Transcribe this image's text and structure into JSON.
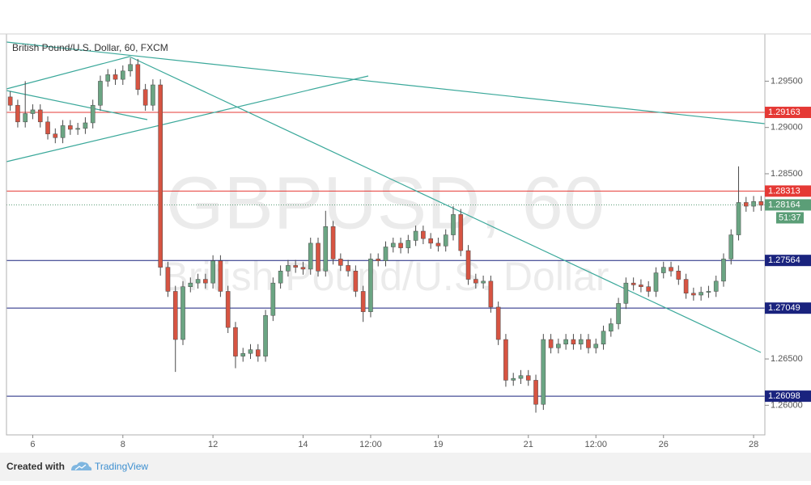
{
  "chart_data": {
    "type": "candlestick",
    "title": "British Pound/U.S. Dollar, 60, FXCM",
    "watermark": "GBPUSD, 60",
    "watermark_subtitle": "British Pound/U.S. Dollar",
    "categories": [
      null,
      null,
      null,
      "6",
      null,
      null,
      null,
      null,
      null,
      null,
      null,
      null,
      null,
      null,
      null,
      "8",
      null,
      null,
      null,
      null,
      null,
      null,
      null,
      null,
      null,
      null,
      null,
      "12",
      null,
      null,
      null,
      null,
      null,
      null,
      null,
      null,
      null,
      null,
      null,
      "14",
      null,
      null,
      null,
      null,
      null,
      null,
      null,
      null,
      "12:00",
      null,
      null,
      null,
      null,
      null,
      null,
      null,
      null,
      "19",
      null,
      null,
      null,
      null,
      null,
      null,
      null,
      null,
      null,
      null,
      null,
      "21",
      null,
      null,
      null,
      null,
      null,
      null,
      null,
      null,
      "12:00",
      null,
      null,
      null,
      null,
      null,
      null,
      null,
      null,
      "26",
      null,
      null,
      null,
      null,
      null,
      null,
      null,
      null,
      null,
      null,
      null,
      "28",
      null
    ],
    "open": [
      1.2933,
      1.2924,
      1.2906,
      1.2915,
      1.2919,
      1.2906,
      1.2893,
      1.2889,
      1.2902,
      1.2898,
      1.2899,
      1.2905,
      1.2924,
      1.295,
      1.2957,
      1.2952,
      1.2961,
      1.2968,
      1.2941,
      1.2924,
      1.2946,
      1.2749,
      1.2723,
      1.2671,
      1.2728,
      1.2732,
      1.2736,
      1.2732,
      1.2756,
      1.2723,
      1.2684,
      1.2653,
      1.2656,
      1.266,
      1.2653,
      1.2697,
      1.2732,
      1.2745,
      1.2751,
      1.2749,
      1.2747,
      1.2775,
      1.2745,
      1.2793,
      1.2758,
      1.2751,
      1.2745,
      1.2723,
      1.2701,
      1.2758,
      1.2756,
      1.2771,
      1.2775,
      1.277,
      1.2778,
      1.2788,
      1.278,
      1.2775,
      1.2772,
      1.2784,
      1.2806,
      1.2767,
      1.2736,
      1.2732,
      1.2734,
      1.2706,
      1.2671,
      1.2627,
      1.2629,
      1.2632,
      1.2627,
      1.2601,
      1.2671,
      1.2662,
      1.2666,
      1.2671,
      1.2666,
      1.2671,
      1.2662,
      1.2666,
      1.268,
      1.2688,
      1.271,
      1.2732,
      1.273,
      1.2728,
      1.2723,
      1.2743,
      1.2749,
      1.2745,
      1.2736,
      1.2721,
      1.2719,
      1.2722,
      1.2723,
      1.2734,
      1.2758,
      1.2784,
      1.2819,
      1.2815,
      1.282
    ],
    "high": [
      1.2939,
      1.293,
      1.295,
      1.2925,
      1.2925,
      1.2912,
      1.2899,
      1.2908,
      1.2908,
      1.2905,
      1.2911,
      1.293,
      1.2956,
      1.2963,
      1.2963,
      1.2967,
      1.2975,
      1.2974,
      1.2947,
      1.2952,
      1.2952,
      1.2755,
      1.2729,
      1.2734,
      1.2738,
      1.2742,
      1.2742,
      1.2762,
      1.2762,
      1.2729,
      1.269,
      1.2662,
      1.2666,
      1.2666,
      1.2703,
      1.2738,
      1.2751,
      1.2757,
      1.2757,
      1.2755,
      1.2781,
      1.2781,
      1.281,
      1.2799,
      1.2764,
      1.2757,
      1.2751,
      1.2729,
      1.2764,
      1.2764,
      1.2777,
      1.2781,
      1.2781,
      1.2784,
      1.2794,
      1.2794,
      1.2786,
      1.2781,
      1.279,
      1.2815,
      1.2812,
      1.2773,
      1.2742,
      1.274,
      1.274,
      1.2712,
      1.2677,
      1.2635,
      1.2638,
      1.2638,
      1.2633,
      1.2677,
      1.2677,
      1.2672,
      1.2677,
      1.2677,
      1.2677,
      1.2677,
      1.2672,
      1.2686,
      1.2694,
      1.2716,
      1.2738,
      1.2738,
      1.2736,
      1.2734,
      1.2749,
      1.2755,
      1.2755,
      1.2751,
      1.2742,
      1.2727,
      1.2728,
      1.2729,
      1.274,
      1.2764,
      1.279,
      1.2858,
      1.2825,
      1.2826,
      1.2826
    ],
    "low": [
      1.2918,
      1.29,
      1.29,
      1.2909,
      1.29,
      1.2887,
      1.2883,
      1.2883,
      1.2892,
      1.2892,
      1.2893,
      1.2899,
      1.2918,
      1.2944,
      1.2946,
      1.2946,
      1.2955,
      1.2935,
      1.2918,
      1.2918,
      1.274,
      1.2717,
      1.2636,
      1.2665,
      1.2722,
      1.2726,
      1.2726,
      1.2726,
      1.2717,
      1.2678,
      1.264,
      1.2647,
      1.265,
      1.2647,
      1.2647,
      1.2691,
      1.2726,
      1.2739,
      1.2743,
      1.2741,
      1.2741,
      1.2739,
      1.2739,
      1.2752,
      1.2745,
      1.2739,
      1.2717,
      1.269,
      1.2695,
      1.275,
      1.275,
      1.2765,
      1.2764,
      1.2764,
      1.2772,
      1.2774,
      1.2769,
      1.2766,
      1.2766,
      1.2778,
      1.2761,
      1.273,
      1.2726,
      1.2726,
      1.27,
      1.2665,
      1.262,
      1.2621,
      1.2623,
      1.2621,
      1.2592,
      1.2595,
      1.2656,
      1.2656,
      1.266,
      1.266,
      1.266,
      1.2656,
      1.2656,
      1.266,
      1.2674,
      1.2682,
      1.2704,
      1.2724,
      1.2722,
      1.2717,
      1.2717,
      1.2737,
      1.2739,
      1.273,
      1.2715,
      1.2713,
      1.2713,
      1.2716,
      1.2717,
      1.2728,
      1.2752,
      1.2778,
      1.2809,
      1.2809,
      1.281
    ],
    "close": [
      1.2924,
      1.2906,
      1.2915,
      1.2919,
      1.2906,
      1.2893,
      1.2889,
      1.2902,
      1.2898,
      1.2899,
      1.2905,
      1.2924,
      1.295,
      1.2957,
      1.2952,
      1.2961,
      1.2968,
      1.2941,
      1.2924,
      1.2946,
      1.2749,
      1.2723,
      1.2671,
      1.2728,
      1.2732,
      1.2736,
      1.2732,
      1.2756,
      1.2723,
      1.2684,
      1.2653,
      1.2656,
      1.266,
      1.2653,
      1.2697,
      1.2732,
      1.2745,
      1.2751,
      1.2749,
      1.2747,
      1.2775,
      1.2745,
      1.2793,
      1.2758,
      1.2751,
      1.2745,
      1.2723,
      1.2701,
      1.2758,
      1.2756,
      1.2771,
      1.2775,
      1.277,
      1.2778,
      1.2788,
      1.278,
      1.2775,
      1.2772,
      1.2784,
      1.2806,
      1.2767,
      1.2736,
      1.2732,
      1.2734,
      1.2706,
      1.2671,
      1.2627,
      1.2629,
      1.2632,
      1.2627,
      1.2601,
      1.2671,
      1.2662,
      1.2666,
      1.2671,
      1.2666,
      1.2671,
      1.2662,
      1.2666,
      1.268,
      1.2688,
      1.271,
      1.2732,
      1.273,
      1.2728,
      1.2723,
      1.2743,
      1.2749,
      1.2745,
      1.2736,
      1.2721,
      1.2719,
      1.2722,
      1.2723,
      1.2734,
      1.2758,
      1.2784,
      1.2819,
      1.2815,
      1.282,
      1.2816
    ],
    "up_color": "#6ba583",
    "down_color": "#d75442",
    "wick_color": "#4a4a4a",
    "ylim": [
      1.2568,
      1.3001
    ],
    "yticks": [
      {
        "value": 1.295,
        "label": "1.29500"
      },
      {
        "value": 1.29,
        "label": "1.29000"
      },
      {
        "value": 1.285,
        "label": "1.28500"
      },
      {
        "value": 1.265,
        "label": "1.26500"
      },
      {
        "value": 1.26,
        "label": "1.26000"
      }
    ],
    "levels": [
      {
        "value": 1.29163,
        "color": "#e53935"
      },
      {
        "value": 1.28313,
        "color": "#e53935"
      },
      {
        "value": 1.27564,
        "color": "#1a237e"
      },
      {
        "value": 1.27049,
        "color": "#1a237e"
      },
      {
        "value": 1.26098,
        "color": "#1a237e"
      }
    ],
    "last_price": 1.28164,
    "last_color": "#5b9e77",
    "countdown": "51:37",
    "grid": false
  },
  "footer": {
    "created_with": "Created with",
    "brand": "TradingView"
  }
}
